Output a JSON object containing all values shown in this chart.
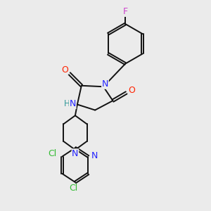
{
  "background_color": "#ebebeb",
  "figsize": [
    3.0,
    3.0
  ],
  "dpi": 100,
  "bond_color": "#111111",
  "lw": 1.4,
  "atom_colors": {
    "F": "#cc44cc",
    "O": "#ff2200",
    "N": "#2222ff",
    "NH": "#2222ff",
    "H": "#339999",
    "Cl": "#33bb33"
  }
}
